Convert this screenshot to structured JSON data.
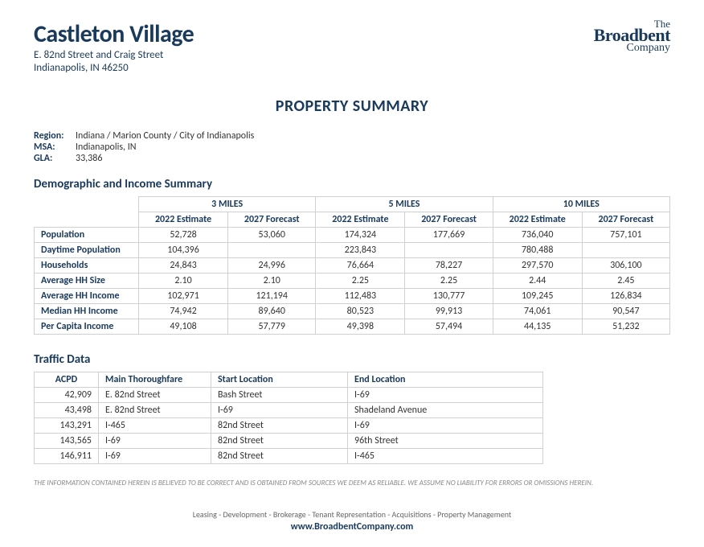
{
  "header": {
    "property_name": "Castleton Village",
    "address_line1": "E. 82nd Street and Craig Street",
    "address_line2": "Indianapolis, IN  46250",
    "logo": {
      "l1": "The",
      "l2": "Broadbent",
      "l3": "Company"
    }
  },
  "page_heading": "PROPERTY SUMMARY",
  "meta": {
    "region_label": "Region:",
    "region_value": "Indiana / Marion County / City of Indianapolis",
    "msa_label": "MSA:",
    "msa_value": "Indianapolis, IN",
    "gla_label": "GLA:",
    "gla_value": "33,386"
  },
  "demo": {
    "section_title": "Demographic and Income Summary",
    "group_headers": [
      "3 MILES",
      "5 MILES",
      "10 MILES"
    ],
    "sub_headers": [
      "2022 Estimate",
      "2027 Forecast",
      "2022 Estimate",
      "2027 Forecast",
      "2022 Estimate",
      "2027 Forecast"
    ],
    "rows": [
      {
        "label": "Population",
        "cells": [
          "52,728",
          "53,060",
          "174,324",
          "177,669",
          "736,040",
          "757,101"
        ]
      },
      {
        "label": "Daytime Population",
        "cells": [
          "104,396",
          "",
          "223,843",
          "",
          "780,488",
          ""
        ]
      },
      {
        "label": "Households",
        "cells": [
          "24,843",
          "24,996",
          "76,664",
          "78,227",
          "297,570",
          "306,100"
        ]
      },
      {
        "label": "Average HH Size",
        "cells": [
          "2.10",
          "2.10",
          "2.25",
          "2.25",
          "2.44",
          "2.45"
        ]
      },
      {
        "label": "Average HH Income",
        "cells": [
          "102,971",
          "121,194",
          "112,483",
          "130,777",
          "109,245",
          "126,834"
        ]
      },
      {
        "label": "Median HH Income",
        "cells": [
          "74,942",
          "89,640",
          "80,523",
          "99,913",
          "74,061",
          "90,547"
        ]
      },
      {
        "label": "Per Capita Income",
        "cells": [
          "49,108",
          "57,779",
          "49,398",
          "57,494",
          "44,135",
          "51,232"
        ]
      }
    ]
  },
  "traffic": {
    "section_title": "Traffic Data",
    "headers": {
      "acpd": "ACPD",
      "main": "Main Thoroughfare",
      "start": "Start Location",
      "end": "End Location"
    },
    "rows": [
      {
        "acpd": "42,909",
        "main": "E. 82nd Street",
        "start": "Bash Street",
        "end": "I-69"
      },
      {
        "acpd": "43,498",
        "main": "E. 82nd Street",
        "start": "I-69",
        "end": "Shadeland Avenue"
      },
      {
        "acpd": "143,291",
        "main": "I-465",
        "start": "82nd Street",
        "end": "I-69"
      },
      {
        "acpd": "143,565",
        "main": "I-69",
        "start": "82nd Street",
        "end": "96th Street"
      },
      {
        "acpd": "146,911",
        "main": "I-69",
        "start": "82nd Street",
        "end": "I-465"
      }
    ]
  },
  "disclaimer": "THE INFORMATION CONTAINED HEREIN IS BELIEVED TO BE CORRECT AND IS OBTAINED FROM SOURCES WE DEEM AS RELIABLE.  WE ASSUME NO LIABILITY FOR ERRORS OR OMISSIONS HEREIN.",
  "footer": {
    "services": "Leasing  -  Development  -  Brokerage  -  Tenant Representation  -  Acquisitions  -  Property Management",
    "url": "www.BroadbentCompany.com"
  }
}
